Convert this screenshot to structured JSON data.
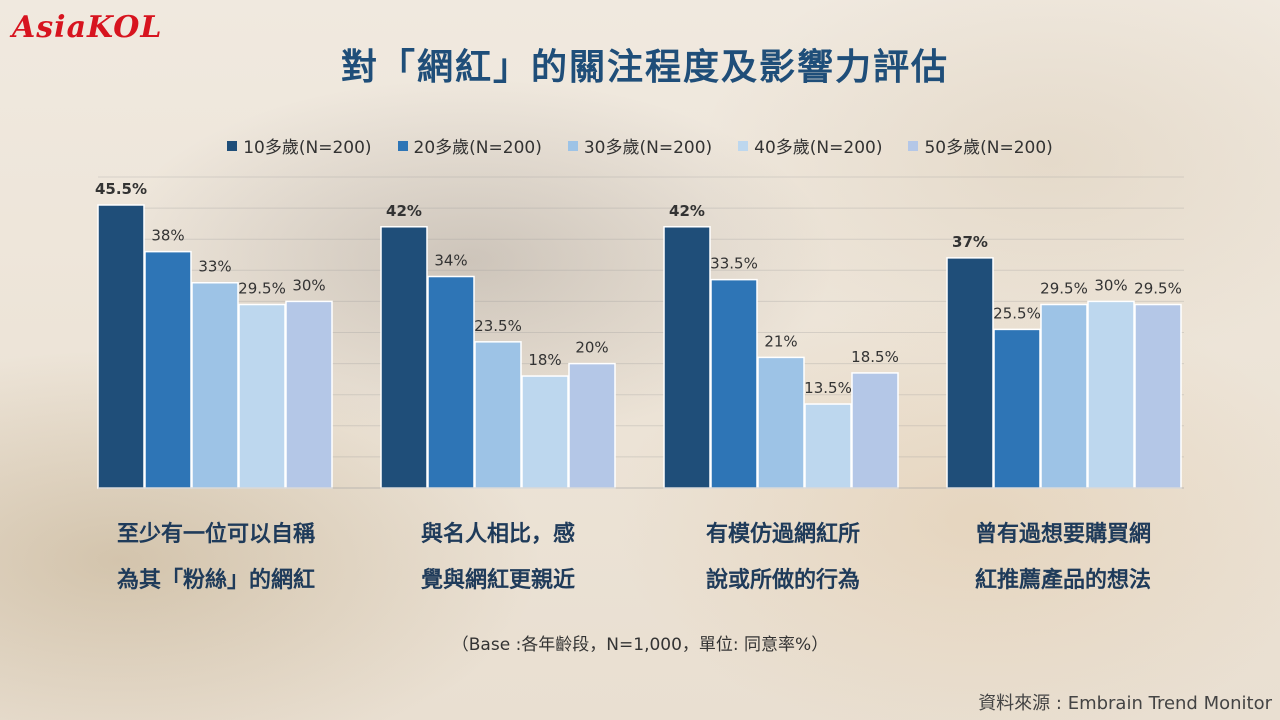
{
  "logo": "AsiaKOL",
  "title": "對「網紅」的關注程度及影響力評估",
  "legend_items": [
    "10多歲(N=200)",
    "20多歲(N=200)",
    "30多歲(N=200)",
    "40多歲(N=200)",
    "50多歲(N=200)"
  ],
  "base_note": "（Base :各年齡段，N=1,000，單位: 同意率%）",
  "source": "資料來源 : Embrain Trend Monitor",
  "colors": {
    "series": [
      "#1f4e79",
      "#2e75b6",
      "#9dc3e6",
      "#bdd7ee",
      "#b4c7e7"
    ],
    "title": "#1f4e79",
    "logo": "#d7141f"
  },
  "chart_data": {
    "type": "bar",
    "categories": [
      "至少有一位可以自稱\n為其「粉絲」的網紅",
      "與名人相比，感\n覺與網紅更親近",
      "有模仿過網紅所\n說或所做的行為",
      "曾有過想要購買網\n紅推薦產品的想法"
    ],
    "series": [
      {
        "name": "10多歲(N=200)",
        "values": [
          45.5,
          42,
          42,
          37
        ]
      },
      {
        "name": "20多歲(N=200)",
        "values": [
          38,
          34,
          33.5,
          25.5
        ]
      },
      {
        "name": "30多歲(N=200)",
        "values": [
          33,
          23.5,
          21,
          29.5
        ]
      },
      {
        "name": "40多歲(N=200)",
        "values": [
          29.5,
          18,
          13.5,
          30
        ]
      },
      {
        "name": "50多歲(N=200)",
        "values": [
          30,
          20,
          18.5,
          29.5
        ]
      }
    ],
    "data_labels": [
      [
        "45.5%",
        "42%",
        "42%",
        "37%"
      ],
      [
        "38%",
        "34%",
        "33.5%",
        "25.5%"
      ],
      [
        "33%",
        "23.5%",
        "21%",
        "29.5%"
      ],
      [
        "29.5%",
        "18%",
        "13.5%",
        "30%"
      ],
      [
        "30%",
        "20%",
        "18.5%",
        "29.5%"
      ]
    ],
    "ylim": [
      0,
      50
    ],
    "grid": true,
    "legend_position": "top"
  }
}
